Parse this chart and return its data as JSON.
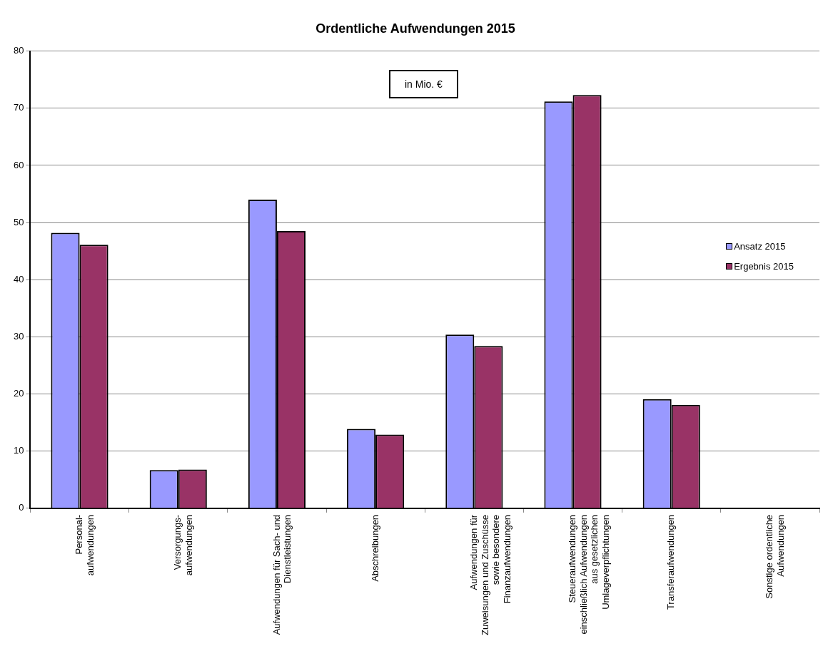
{
  "chart_data": {
    "type": "bar",
    "title": "Ordentliche Aufwendungen 2015",
    "categories": [
      "Personal-\naufwendungen",
      "Versorgungs-\naufwendungen",
      "Aufwendungen für Sach- und\nDienstleistungen",
      "Abschreibungen",
      "Aufwendungen für\nZuweisungen und Zuschüsse\nsowie besondere\nFinanzaufwendungen",
      "Steueraufwendungen\neinschließlich Aufwendungen\naus gesetzlichen\nUmlageverpflichtungen",
      "Transferaufwendungen",
      "Sonstige ordentliche\nAufwendungen"
    ],
    "series": [
      {
        "name": "Ansatz 2015",
        "color": "#9999ff",
        "values": [
          48.2,
          6.7,
          54.0,
          13.9,
          30.4,
          71.2,
          19.1,
          0
        ]
      },
      {
        "name": "Ergebnis 2015",
        "color": "#993366",
        "values": [
          46.1,
          6.8,
          48.5,
          12.9,
          28.4,
          72.3,
          18.1,
          0
        ]
      }
    ],
    "ylim": [
      0,
      80
    ],
    "yticks": [
      0,
      10,
      20,
      30,
      40,
      50,
      60,
      70,
      80
    ],
    "grid": "y",
    "legend": "right",
    "annotations": [
      "in Mio. €"
    ]
  }
}
